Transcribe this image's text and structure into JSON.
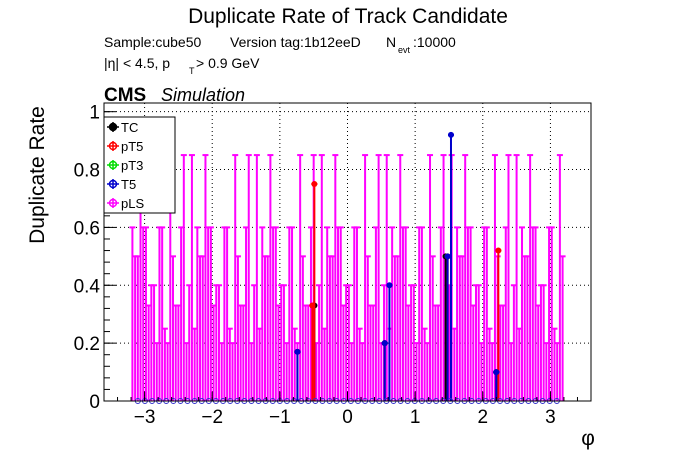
{
  "chart_data": {
    "type": "scatter",
    "title": "Duplicate Rate of Track Candidate",
    "info_sample": "Sample:cube50",
    "info_version": "Version tag:1b12eeD",
    "info_nevt_symbol": "N",
    "info_nevt_sub": "evt",
    "info_nevt_value": ":10000",
    "info_cut_eta": "|η| < 4.5, p",
    "info_cut_sub": "T",
    "info_cut_pt": " > 0.9 GeV",
    "cms_label": "CMS",
    "sim_label": "Simulation",
    "xlabel": "φ",
    "ylabel": "Duplicate Rate",
    "xlim": [
      -3.6,
      3.6
    ],
    "ylim": [
      0,
      1.03
    ],
    "xticks": [
      -3,
      -2,
      -1,
      0,
      1,
      2,
      3
    ],
    "xtick_labels": [
      "−3",
      "−2",
      "−1",
      "0",
      "1",
      "2",
      "3"
    ],
    "yticks": [
      0,
      0.2,
      0.4,
      0.6,
      0.8,
      1
    ],
    "ytick_labels": [
      "0",
      "0.2",
      "0.4",
      "0.6",
      "0.8",
      "1"
    ],
    "grid": true,
    "legend_position": "top-left",
    "legend": [
      "TC",
      "pT5",
      "pT3",
      "T5",
      "pLS"
    ],
    "series": [
      {
        "name": "TC",
        "color": "#000000",
        "marker": "circle",
        "points": [
          [
            -0.49,
            0.33
          ],
          [
            -0.74,
            0.17
          ],
          [
            0.55,
            0.2
          ],
          [
            1.45,
            0.5
          ],
          [
            2.2,
            0.1
          ]
        ]
      },
      {
        "name": "pT5",
        "color": "#ff0000",
        "marker": "triangle",
        "points": [
          [
            -0.52,
            0.33
          ],
          [
            -0.49,
            0.75
          ],
          [
            2.23,
            0.52
          ],
          [
            1.48,
            0.5
          ]
        ]
      },
      {
        "name": "pT3",
        "color": "#00dd00",
        "marker": "cross",
        "points": []
      },
      {
        "name": "T5",
        "color": "#0000cc",
        "marker": "circle-open",
        "points": [
          [
            -0.74,
            0.17
          ],
          [
            0.55,
            0.2
          ],
          [
            0.62,
            0.4
          ],
          [
            1.48,
            0.5
          ],
          [
            1.53,
            0.92
          ],
          [
            2.2,
            0.1
          ]
        ]
      },
      {
        "name": "pLS",
        "color": "#ff00ff",
        "marker": "triangle-down",
        "x_start": -3.2,
        "x_end": 3.2,
        "bins": 160,
        "values_shown": [
          0.0,
          0.2,
          0.25,
          0.33,
          0.4,
          0.5,
          0.6,
          0.85
        ],
        "sample_values": [
          0.6,
          0.85,
          0.2,
          0.4,
          0.6,
          0.33,
          0.85,
          0.5,
          0.25,
          0.6,
          0.4,
          0.85,
          0.33,
          0.6,
          0.5,
          0.2
        ]
      }
    ]
  }
}
